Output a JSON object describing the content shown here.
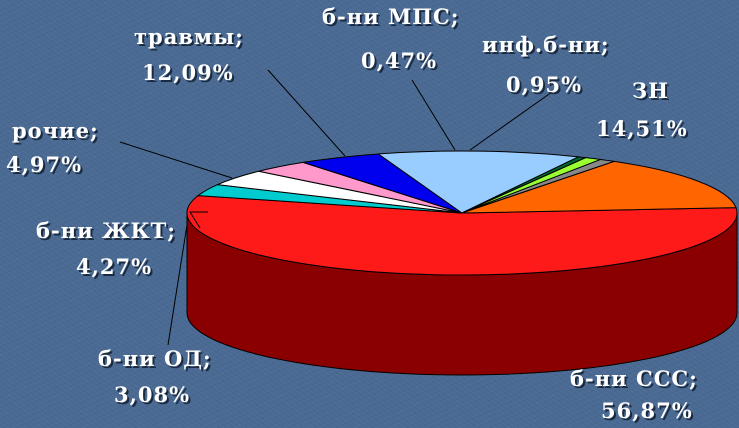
{
  "chart_data": {
    "type": "pie",
    "slices": [
      {
        "label": "б-ни ССС;",
        "value_text": "56,87%",
        "value": 56.87,
        "color": "#ff1a1a",
        "side_color": "#8a0000"
      },
      {
        "label": "б-ни ОД;",
        "value_text": "3,08%",
        "value": 3.08,
        "color": "#00ccd0",
        "side_color": "#006668"
      },
      {
        "label": "б-ни ЖКТ;",
        "value_text": "4,27%",
        "value": 4.27,
        "color": "#ffffff",
        "side_color": "#909090"
      },
      {
        "label": "",
        "value_text": "",
        "value": 3.49,
        "color": "#ff99cc",
        "side_color": "#a05070"
      },
      {
        "label": "рочие;",
        "value_text": "4,97%",
        "value": 4.97,
        "color": "#0000ee",
        "side_color": "#000070"
      },
      {
        "label": "травмы;",
        "value_text": "12,09%",
        "value": 12.09,
        "color": "#99ccff",
        "side_color": "#4d6680"
      },
      {
        "label": "б-ни МПС;",
        "value_text": "0,47%",
        "value": 0.47,
        "color": "#006633",
        "side_color": "#003319"
      },
      {
        "label": "",
        "value_text": "",
        "value": 1.0,
        "color": "#99ff33",
        "side_color": "#4d801a"
      },
      {
        "label": "инф.б-ни;",
        "value_text": "0,95%",
        "value": 0.95,
        "color": "#888888",
        "side_color": "#444444"
      },
      {
        "label": "ЗН",
        "value_text": "14,51%",
        "value": 14.51,
        "color": "#ff6600",
        "side_color": "#803300"
      }
    ]
  }
}
